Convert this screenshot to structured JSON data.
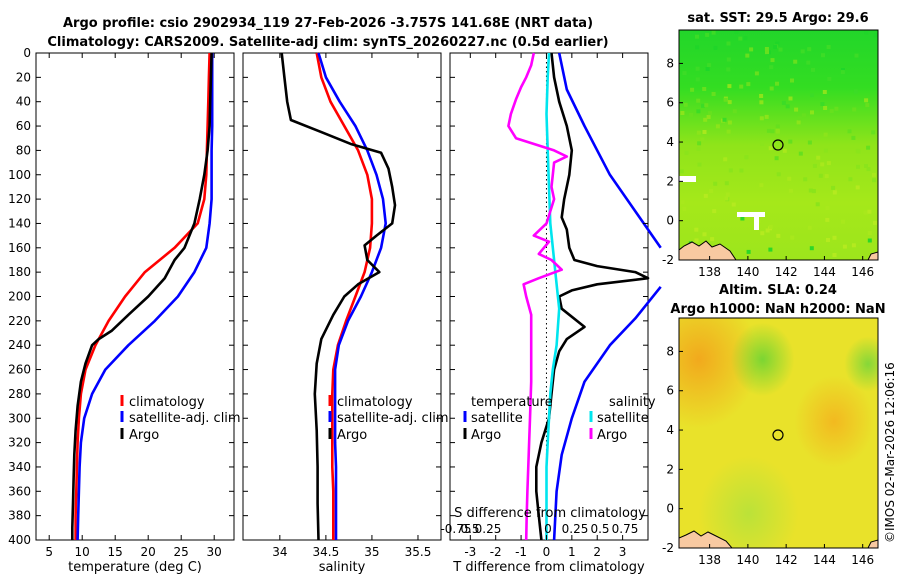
{
  "title": {
    "line1": "Argo profile: csio 2902934_119 27-Feb-2026 -3.757S 141.68E (NRT data)",
    "line2": "Climatology: CARS2009. Satellite-adj clim: synTS_20260227.nc (0.5d earlier)"
  },
  "footer": {
    "timestamp": "©IMOS 02-Mar-2026 12:06:16"
  },
  "colors": {
    "climatology": "#ff0000",
    "satellite": "#0000ff",
    "argo": "#000000",
    "sat_diff": "#00e5ee",
    "argo_s_diff": "#ff00ff"
  },
  "chart_data": [
    {
      "type": "line",
      "name": "temperature-profile",
      "xlabel": "temperature (deg C)",
      "ylabel": "",
      "xlim": [
        3,
        33
      ],
      "ylim": [
        0,
        400
      ],
      "xticks": [
        5,
        10,
        15,
        20,
        25,
        30
      ],
      "yticks": [
        0,
        20,
        40,
        60,
        80,
        100,
        120,
        140,
        160,
        180,
        200,
        220,
        240,
        260,
        280,
        300,
        320,
        340,
        360,
        380,
        400
      ],
      "y_reversed": true,
      "legend": {
        "position": "bottom-right",
        "entries": [
          "climatology",
          "satellite-adj. clim",
          "Argo"
        ]
      },
      "series": [
        {
          "name": "climatology",
          "color": "#ff0000",
          "points": [
            [
              29.3,
              0
            ],
            [
              29.2,
              20
            ],
            [
              29.1,
              40
            ],
            [
              29.0,
              60
            ],
            [
              28.9,
              80
            ],
            [
              28.8,
              100
            ],
            [
              28.5,
              120
            ],
            [
              27.5,
              140
            ],
            [
              24.0,
              160
            ],
            [
              19.5,
              180
            ],
            [
              16.5,
              200
            ],
            [
              14.0,
              220
            ],
            [
              12.0,
              240
            ],
            [
              10.5,
              260
            ],
            [
              9.8,
              280
            ],
            [
              9.5,
              300
            ],
            [
              9.3,
              320
            ],
            [
              9.2,
              340
            ],
            [
              9.1,
              360
            ],
            [
              9.0,
              380
            ],
            [
              9.0,
              400
            ]
          ]
        },
        {
          "name": "satellite-adj. clim",
          "color": "#0000ff",
          "points": [
            [
              29.7,
              0
            ],
            [
              29.7,
              20
            ],
            [
              29.7,
              40
            ],
            [
              29.7,
              60
            ],
            [
              29.6,
              80
            ],
            [
              29.6,
              100
            ],
            [
              29.6,
              120
            ],
            [
              29.3,
              140
            ],
            [
              28.8,
              160
            ],
            [
              27.0,
              180
            ],
            [
              24.5,
              200
            ],
            [
              21.0,
              220
            ],
            [
              17.0,
              240
            ],
            [
              13.5,
              260
            ],
            [
              11.5,
              280
            ],
            [
              10.3,
              300
            ],
            [
              9.8,
              320
            ],
            [
              9.6,
              340
            ],
            [
              9.5,
              360
            ],
            [
              9.4,
              380
            ],
            [
              9.3,
              400
            ]
          ]
        },
        {
          "name": "Argo",
          "color": "#000000",
          "points": [
            [
              29.6,
              0
            ],
            [
              29.5,
              20
            ],
            [
              29.4,
              40
            ],
            [
              29.3,
              60
            ],
            [
              29.0,
              80
            ],
            [
              28.5,
              100
            ],
            [
              27.8,
              120
            ],
            [
              27.0,
              140
            ],
            [
              25.5,
              160
            ],
            [
              24.0,
              170
            ],
            [
              22.5,
              185
            ],
            [
              20.0,
              200
            ],
            [
              17.0,
              215
            ],
            [
              14.5,
              228
            ],
            [
              12.5,
              235
            ],
            [
              11.5,
              240
            ],
            [
              10.5,
              255
            ],
            [
              9.8,
              270
            ],
            [
              9.3,
              290
            ],
            [
              9.0,
              310
            ],
            [
              8.8,
              330
            ],
            [
              8.7,
              350
            ],
            [
              8.6,
              370
            ],
            [
              8.5,
              390
            ],
            [
              8.5,
              400
            ]
          ]
        }
      ]
    },
    {
      "type": "line",
      "name": "salinity-profile",
      "xlabel": "salinity",
      "xlim": [
        33.6,
        35.75
      ],
      "ylim": [
        0,
        400
      ],
      "xticks": [
        34,
        34.5,
        35,
        35.5
      ],
      "y_reversed": true,
      "legend": {
        "position": "bottom-right",
        "entries": [
          "climatology",
          "satellite-adj. clim",
          "Argo"
        ]
      },
      "series": [
        {
          "name": "climatology",
          "color": "#ff0000",
          "points": [
            [
              34.4,
              0
            ],
            [
              34.45,
              20
            ],
            [
              34.55,
              40
            ],
            [
              34.7,
              60
            ],
            [
              34.85,
              80
            ],
            [
              34.95,
              100
            ],
            [
              35.0,
              120
            ],
            [
              35.0,
              140
            ],
            [
              34.98,
              160
            ],
            [
              34.92,
              180
            ],
            [
              34.82,
              200
            ],
            [
              34.72,
              220
            ],
            [
              34.63,
              240
            ],
            [
              34.58,
              260
            ],
            [
              34.57,
              280
            ],
            [
              34.57,
              300
            ],
            [
              34.57,
              320
            ],
            [
              34.57,
              340
            ],
            [
              34.58,
              360
            ],
            [
              34.58,
              380
            ],
            [
              34.58,
              400
            ]
          ]
        },
        {
          "name": "satellite-adj. clim",
          "color": "#0000ff",
          "points": [
            [
              34.42,
              0
            ],
            [
              34.5,
              20
            ],
            [
              34.65,
              40
            ],
            [
              34.82,
              60
            ],
            [
              34.95,
              80
            ],
            [
              35.05,
              100
            ],
            [
              35.12,
              120
            ],
            [
              35.15,
              140
            ],
            [
              35.1,
              160
            ],
            [
              35.0,
              180
            ],
            [
              34.88,
              200
            ],
            [
              34.74,
              220
            ],
            [
              34.64,
              240
            ],
            [
              34.6,
              260
            ],
            [
              34.6,
              280
            ],
            [
              34.6,
              300
            ],
            [
              34.6,
              320
            ],
            [
              34.61,
              340
            ],
            [
              34.61,
              360
            ],
            [
              34.61,
              380
            ],
            [
              34.61,
              400
            ]
          ]
        },
        {
          "name": "Argo",
          "color": "#000000",
          "points": [
            [
              34.02,
              0
            ],
            [
              34.05,
              20
            ],
            [
              34.08,
              40
            ],
            [
              34.12,
              55
            ],
            [
              34.45,
              65
            ],
            [
              34.78,
              75
            ],
            [
              35.1,
              82
            ],
            [
              35.18,
              95
            ],
            [
              35.22,
              110
            ],
            [
              35.25,
              125
            ],
            [
              35.22,
              140
            ],
            [
              35.05,
              150
            ],
            [
              34.92,
              158
            ],
            [
              34.95,
              170
            ],
            [
              35.08,
              180
            ],
            [
              34.85,
              190
            ],
            [
              34.7,
              200
            ],
            [
              34.58,
              215
            ],
            [
              34.45,
              235
            ],
            [
              34.4,
              255
            ],
            [
              34.38,
              280
            ],
            [
              34.4,
              310
            ],
            [
              34.41,
              340
            ],
            [
              34.41,
              370
            ],
            [
              34.42,
              400
            ]
          ]
        }
      ]
    },
    {
      "type": "line",
      "name": "difference-profile",
      "xlabel": "T difference from climatology",
      "top_xlabel": "S difference from climatology",
      "xlim": [
        -3.8,
        4.0
      ],
      "ylim": [
        0,
        400
      ],
      "xticks": [
        -3,
        -2,
        -1,
        0,
        1,
        2,
        3
      ],
      "top_xticklabels": [
        "-0.75",
        "0.5",
        "0.25",
        "0",
        "0.25",
        "0.5",
        "0.75"
      ],
      "zero_line": true,
      "y_reversed": true,
      "legend": {
        "position": "bottom",
        "headers": [
          "temperature",
          "salinity"
        ],
        "entries": [
          "satellite",
          "Argo",
          "satellite",
          "Argo"
        ]
      },
      "series": [
        {
          "name": "T satellite",
          "color": "#0000ff",
          "points": [
            [
              0.5,
              0
            ],
            [
              0.8,
              30
            ],
            [
              1.5,
              60
            ],
            [
              2.5,
              100
            ],
            [
              3.5,
              130
            ],
            [
              4.5,
              160
            ]
          ]
        },
        {
          "name": "T satellite (deep)",
          "color": "#0000ff",
          "points": [
            [
              4.5,
              192
            ],
            [
              3.5,
              218
            ],
            [
              2.5,
              240
            ],
            [
              1.5,
              270
            ],
            [
              1.0,
              300
            ],
            [
              0.6,
              330
            ],
            [
              0.4,
              360
            ],
            [
              0.3,
              400
            ]
          ]
        },
        {
          "name": "T Argo",
          "color": "#000000",
          "points": [
            [
              0.2,
              0
            ],
            [
              0.3,
              20
            ],
            [
              0.5,
              40
            ],
            [
              0.8,
              60
            ],
            [
              1.0,
              80
            ],
            [
              0.9,
              100
            ],
            [
              0.7,
              120
            ],
            [
              0.6,
              135
            ],
            [
              0.8,
              145
            ],
            [
              0.9,
              160
            ],
            [
              1.1,
              170
            ],
            [
              2.0,
              175
            ],
            [
              3.5,
              180
            ],
            [
              4.0,
              185
            ],
            [
              2.0,
              190
            ],
            [
              1.0,
              195
            ],
            [
              0.5,
              200
            ],
            [
              0.6,
              210
            ],
            [
              1.5,
              225
            ],
            [
              0.8,
              235
            ],
            [
              0.5,
              245
            ],
            [
              0.3,
              260
            ],
            [
              0.2,
              280
            ],
            [
              0.1,
              300
            ],
            [
              -0.2,
              320
            ],
            [
              -0.4,
              340
            ],
            [
              -0.4,
              360
            ],
            [
              -0.3,
              380
            ],
            [
              -0.2,
              400
            ]
          ]
        },
        {
          "name": "S satellite",
          "color": "#00e5ee",
          "points": [
            [
              0.1,
              0
            ],
            [
              0.05,
              20
            ],
            [
              0.0,
              50
            ],
            [
              0.05,
              80
            ],
            [
              0.1,
              110
            ],
            [
              0.15,
              140
            ],
            [
              0.3,
              170
            ],
            [
              0.4,
              190
            ],
            [
              0.5,
              210
            ],
            [
              0.4,
              240
            ],
            [
              0.25,
              260
            ],
            [
              0.15,
              280
            ],
            [
              0.1,
              300
            ],
            [
              0.05,
              320
            ],
            [
              0.0,
              340
            ],
            [
              0.0,
              360
            ],
            [
              0.0,
              380
            ],
            [
              0.0,
              400
            ]
          ]
        },
        {
          "name": "S Argo",
          "color": "#ff00ff",
          "points": [
            [
              -0.5,
              0
            ],
            [
              -0.6,
              10
            ],
            [
              -0.8,
              20
            ],
            [
              -1.0,
              28
            ],
            [
              -1.2,
              38
            ],
            [
              -1.4,
              50
            ],
            [
              -1.5,
              60
            ],
            [
              -1.2,
              70
            ],
            [
              0.3,
              80
            ],
            [
              0.8,
              85
            ],
            [
              0.3,
              90
            ],
            [
              0.2,
              110
            ],
            [
              0.3,
              120
            ],
            [
              0.0,
              140
            ],
            [
              -0.5,
              150
            ],
            [
              0.1,
              155
            ],
            [
              -0.3,
              165
            ],
            [
              0.2,
              170
            ],
            [
              0.6,
              178
            ],
            [
              -0.3,
              185
            ],
            [
              -0.9,
              190
            ],
            [
              -0.8,
              200
            ],
            [
              -0.6,
              215
            ],
            [
              -0.6,
              240
            ],
            [
              -0.6,
              270
            ],
            [
              -0.65,
              300
            ],
            [
              -0.7,
              330
            ],
            [
              -0.75,
              360
            ],
            [
              -0.78,
              380
            ],
            [
              -0.8,
              400
            ]
          ]
        }
      ]
    },
    {
      "type": "heatmap",
      "name": "sst-map",
      "title": "sat. SST: 29.5 Argo: 29.6",
      "xlim": [
        136.4,
        146.8
      ],
      "ylim": [
        -2,
        9.7
      ],
      "xticks": [
        138,
        140,
        142,
        144,
        146
      ],
      "yticks": [
        -2,
        0,
        2,
        4,
        6,
        8
      ],
      "marker": {
        "lon": 141.68,
        "lat": 3.7
      }
    },
    {
      "type": "heatmap",
      "name": "sla-map",
      "title": "Altim. SLA: 0.24",
      "subtitle": "Argo h1000: NaN h2000: NaN",
      "xlim": [
        136.4,
        146.8
      ],
      "ylim": [
        -2,
        9.7
      ],
      "xticks": [
        138,
        140,
        142,
        144,
        146
      ],
      "yticks": [
        -2,
        0,
        2,
        4,
        6,
        8
      ],
      "marker": {
        "lon": 141.68,
        "lat": 3.7
      }
    }
  ]
}
